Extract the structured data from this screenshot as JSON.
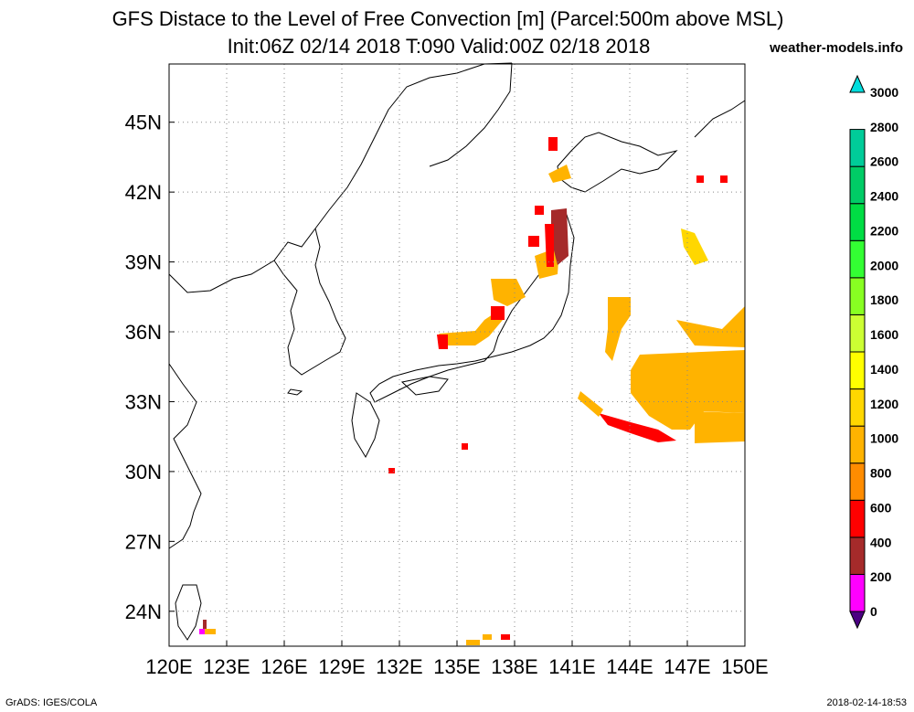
{
  "title_line1": "GFS Distace to the Level of Free Convection [m] (Parcel:500m above MSL)",
  "title_line2": "Init:06Z 02/14 2018 T:090 Valid:00Z 02/18 2018",
  "brand": "weather-models.info",
  "credit_left": "GrADS: IGES/COLA",
  "credit_right": "2018-02-14-18:53",
  "map": {
    "lon_range": [
      120,
      150
    ],
    "lat_range": [
      22.5,
      47.5
    ],
    "x_ticks": [
      "120E",
      "123E",
      "126E",
      "129E",
      "132E",
      "135E",
      "138E",
      "141E",
      "144E",
      "147E",
      "150E"
    ],
    "y_ticks": [
      "24N",
      "27N",
      "30N",
      "33N",
      "36N",
      "39N",
      "42N",
      "45N"
    ],
    "grid": true,
    "gridline_color": "#888888"
  },
  "colorbar": {
    "labels": [
      "0",
      "200",
      "400",
      "600",
      "800",
      "1000",
      "1200",
      "1400",
      "1600",
      "1800",
      "2000",
      "2200",
      "2400",
      "2600",
      "2800",
      "3000"
    ],
    "colors": [
      "#4b0082",
      "#ff00ff",
      "#a52a2a",
      "#ff0000",
      "#ff8c00",
      "#ffb300",
      "#ffd700",
      "#ffff00",
      "#ccff33",
      "#88ff22",
      "#33ff33",
      "#00dd44",
      "#00cc66",
      "#00cc99",
      "#00dddd"
    ]
  }
}
